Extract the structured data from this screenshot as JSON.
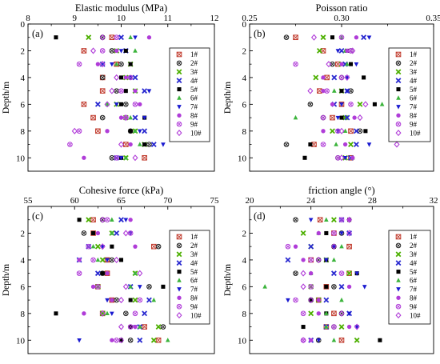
{
  "figure": {
    "legend_entries": [
      "1#",
      "2#",
      "3#",
      "4#",
      "5#",
      "6#",
      "7#",
      "8#",
      "9#",
      "10#"
    ],
    "series_style": [
      {
        "name": "1#",
        "marker": "square-x",
        "color": "#c0392b"
      },
      {
        "name": "2#",
        "marker": "circle-x",
        "color": "#222222"
      },
      {
        "name": "3#",
        "marker": "x",
        "color": "#4caf00"
      },
      {
        "name": "4#",
        "marker": "x",
        "color": "#2a2ad0"
      },
      {
        "name": "5#",
        "marker": "square",
        "color": "#000000"
      },
      {
        "name": "6#",
        "marker": "triangle-up",
        "color": "#3cb43c"
      },
      {
        "name": "7#",
        "marker": "triangle-down",
        "color": "#1a1ad0"
      },
      {
        "name": "8#",
        "marker": "circle",
        "color": "#b03cd8"
      },
      {
        "name": "9#",
        "marker": "circle-x",
        "color": "#b03cd8"
      },
      {
        "name": "10#",
        "marker": "diamond",
        "color": "#b03cd8"
      }
    ]
  },
  "chart_data": [
    {
      "type": "scatter",
      "panel_label": "(a)",
      "title": "Elastic modulus (MPa)",
      "xlabel": "Elastic modulus (MPa)",
      "ylabel": "Depth/m",
      "xlim": [
        8,
        12
      ],
      "ylim": [
        0,
        11
      ],
      "x_ticks": [
        "8",
        "9",
        "10",
        "11",
        "12"
      ],
      "y_ticks": [
        "0",
        "2",
        "4",
        "6",
        "8",
        "10"
      ],
      "legend_position": "right",
      "y": [
        1,
        2,
        3,
        4,
        5,
        6,
        7,
        8,
        9,
        10
      ],
      "series": [
        {
          "name": "1#",
          "x": [
            9.8,
            9.2,
            9.9,
            9.6,
            9.6,
            9.2,
            9.4,
            9.5,
            10.1,
            10.5
          ]
        },
        {
          "name": "2#",
          "x": [
            9.6,
            9.8,
            10.0,
            9.6,
            9.9,
            10.1,
            9.6,
            10.2,
            10.6,
            9.8
          ]
        },
        {
          "name": "3#",
          "x": [
            9.3,
            9.9,
            10.2,
            10.1,
            10.3,
            9.9,
            10.1,
            10.3,
            10.5,
            10.1
          ]
        },
        {
          "name": "4#",
          "x": [
            10.0,
            10.1,
            9.6,
            10.3,
            10.5,
            9.5,
            10.3,
            10.5,
            10.7,
            9.9
          ]
        },
        {
          "name": "5#",
          "x": [
            8.6,
            10.1,
            10.2,
            10.0,
            10.1,
            10.0,
            10.5,
            10.2,
            10.5,
            10.0
          ]
        },
        {
          "name": "6#",
          "x": [
            10.2,
            10.3,
            9.9,
            10.2,
            10.3,
            9.7,
            10.2,
            10.3,
            10.4,
            10.1
          ]
        },
        {
          "name": "7#",
          "x": [
            10.3,
            10.0,
            9.8,
            10.2,
            10.6,
            9.9,
            10.5,
            10.4,
            10.9,
            10.0
          ]
        },
        {
          "name": "8#",
          "x": [
            10.6,
            9.9,
            9.5,
            10.1,
            10.3,
            10.4,
            10.0,
            9.7,
            10.2,
            9.2
          ]
        },
        {
          "name": "9#",
          "x": [
            9.9,
            9.6,
            9.1,
            10.2,
            10.0,
            10.3,
            10.1,
            9.1,
            8.9,
            9.9
          ]
        },
        {
          "name": "10#",
          "x": [
            9.6,
            9.4,
            9.6,
            9.9,
            9.8,
            9.7,
            10.1,
            9.0,
            10.0,
            10.3
          ]
        }
      ]
    },
    {
      "type": "scatter",
      "panel_label": "(b)",
      "title": "Poisson ratio",
      "xlabel": "Poisson ratio",
      "ylabel": "Depth/m",
      "xlim": [
        0.25,
        0.35
      ],
      "ylim": [
        0,
        11
      ],
      "x_ticks": [
        "0.25",
        "0.30",
        "0.35"
      ],
      "y_ticks": [
        "0",
        "2",
        "4",
        "6",
        "8",
        "10"
      ],
      "legend_position": "right",
      "y": [
        1,
        2,
        3,
        4,
        5,
        6,
        7,
        8,
        9,
        10
      ],
      "series": [
        {
          "name": "1#",
          "x": [
            0.275,
            0.29,
            0.298,
            0.292,
            0.288,
            0.3,
            0.295,
            0.305,
            0.285,
            0.305
          ]
        },
        {
          "name": "2#",
          "x": [
            0.27,
            0.305,
            0.295,
            0.3,
            0.305,
            0.283,
            0.29,
            0.31,
            0.27,
            0.298
          ]
        },
        {
          "name": "3#",
          "x": [
            0.29,
            0.288,
            0.3,
            0.286,
            0.3,
            0.31,
            0.302,
            0.295,
            0.305,
            0.302
          ]
        },
        {
          "name": "4#",
          "x": [
            0.312,
            0.3,
            0.302,
            0.296,
            0.303,
            0.296,
            0.303,
            0.308,
            0.308,
            0.305
          ]
        },
        {
          "name": "5#",
          "x": [
            0.295,
            0.303,
            0.305,
            0.312,
            0.3,
            0.318,
            0.3,
            0.313,
            0.283,
            0.28
          ]
        },
        {
          "name": "6#",
          "x": [
            0.3,
            0.302,
            0.303,
            0.29,
            0.296,
            0.322,
            0.275,
            0.302,
            0.297,
            0.306
          ]
        },
        {
          "name": "7#",
          "x": [
            0.315,
            0.298,
            0.308,
            0.303,
            0.303,
            0.3,
            0.298,
            0.298,
            0.315,
            0.302
          ]
        },
        {
          "name": "8#",
          "x": [
            0.308,
            0.303,
            0.3,
            0.29,
            0.29,
            0.295,
            0.307,
            0.29,
            0.302,
            0.306
          ]
        },
        {
          "name": "9#",
          "x": [
            0.3,
            0.305,
            0.275,
            0.3,
            0.292,
            0.305,
            0.29,
            0.298,
            0.29,
            0.298
          ]
        },
        {
          "name": "10#",
          "x": [
            0.285,
            0.306,
            0.293,
            0.303,
            0.283,
            0.313,
            0.31,
            0.3,
            0.33,
            0.3
          ]
        }
      ]
    },
    {
      "type": "scatter",
      "panel_label": "(c)",
      "title": "Cohesive force (kPa)",
      "xlabel": "Cohesive force (kPa)",
      "ylabel": "Depth/m",
      "xlim": [
        55,
        75
      ],
      "ylim": [
        0,
        11
      ],
      "x_ticks": [
        "55",
        "60",
        "65",
        "70",
        "75"
      ],
      "y_ticks": [
        "2",
        "4",
        "6",
        "8",
        "10"
      ],
      "legend_position": "right",
      "y": [
        1,
        2,
        3,
        4,
        5,
        6,
        7,
        8,
        9,
        10
      ],
      "series": [
        {
          "name": "1#",
          "x": [
            62.0,
            62.0,
            68.5,
            63.5,
            63.5,
            62.5,
            64.0,
            63.0,
            67.5,
            69.0
          ]
        },
        {
          "name": "2#",
          "x": [
            63.0,
            61.0,
            69.0,
            64.0,
            63.0,
            68.0,
            64.5,
            65.5,
            69.5,
            66.0
          ]
        },
        {
          "name": "3#",
          "x": [
            61.5,
            64.0,
            62.5,
            63.0,
            66.5,
            62.5,
            66.5,
            63.0,
            69.0,
            68.5
          ]
        },
        {
          "name": "4#",
          "x": [
            65.0,
            64.5,
            61.5,
            60.5,
            62.5,
            66.0,
            68.0,
            67.5,
            67.0,
            67.0
          ]
        },
        {
          "name": "5#",
          "x": [
            60.5,
            62.0,
            64.0,
            65.0,
            63.0,
            69.5,
            66.0,
            58.0,
            66.0,
            65.0
          ]
        },
        {
          "name": "6#",
          "x": [
            64.0,
            64.0,
            62.0,
            62.5,
            66.5,
            66.0,
            68.5,
            63.5,
            67.0,
            70.0
          ]
        },
        {
          "name": "7#",
          "x": [
            65.5,
            66.0,
            63.0,
            63.5,
            71.5,
            67.0,
            63.5,
            64.0,
            66.5,
            60.5
          ]
        },
        {
          "name": "8#",
          "x": [
            66.0,
            62.5,
            66.5,
            60.5,
            63.5,
            62.0,
            64.0,
            61.0,
            66.5,
            64.0
          ]
        },
        {
          "name": "9#",
          "x": [
            63.5,
            66.0,
            61.5,
            62.0,
            60.5,
            62.5,
            67.0,
            66.5,
            66.0,
            64.5
          ]
        },
        {
          "name": "10#",
          "x": [
            63.0,
            65.5,
            63.0,
            64.5,
            67.0,
            65.5,
            65.0,
            63.0,
            65.0,
            65.0
          ]
        }
      ]
    },
    {
      "type": "scatter",
      "panel_label": "(d)",
      "title": "friction angle (°)",
      "xlabel": "friction angle (°)",
      "ylabel": "Depth/m",
      "xlim": [
        20,
        32
      ],
      "ylim": [
        0,
        11
      ],
      "x_ticks": [
        "20",
        "24",
        "28",
        "32"
      ],
      "y_ticks": [
        "2",
        "4",
        "6",
        "8",
        "10"
      ],
      "legend_position": "right",
      "y": [
        1,
        2,
        3,
        4,
        5,
        6,
        7,
        8,
        9,
        10
      ],
      "series": [
        {
          "name": "1#",
          "x": [
            24.6,
            25.5,
            26.5,
            24.0,
            26.5,
            25.0,
            24.5,
            25.5,
            25.0,
            26.0
          ]
        },
        {
          "name": "2#",
          "x": [
            23.0,
            26.0,
            25.5,
            24.5,
            23.0,
            25.5,
            24.0,
            26.0,
            25.5,
            24.5
          ]
        },
        {
          "name": "3#",
          "x": [
            25.5,
            23.5,
            24.0,
            25.0,
            26.5,
            24.0,
            24.5,
            24.0,
            26.0,
            27.0
          ]
        },
        {
          "name": "4#",
          "x": [
            26.0,
            26.5,
            24.0,
            22.5,
            25.5,
            26.0,
            25.0,
            26.5,
            25.0,
            24.0
          ]
        },
        {
          "name": "5#",
          "x": [
            26.5,
            25.0,
            25.5,
            25.0,
            27.0,
            25.0,
            24.0,
            25.0,
            23.5,
            28.5
          ]
        },
        {
          "name": "6#",
          "x": [
            25.0,
            24.5,
            26.0,
            25.5,
            24.0,
            21.0,
            26.0,
            25.0,
            25.0,
            25.5
          ]
        },
        {
          "name": "7#",
          "x": [
            24.0,
            26.0,
            25.5,
            25.0,
            27.0,
            27.5,
            22.5,
            26.5,
            27.0,
            24.5
          ]
        },
        {
          "name": "8#",
          "x": [
            26.5,
            24.5,
            23.0,
            23.5,
            24.0,
            26.5,
            24.5,
            24.5,
            26.5,
            24.0
          ]
        },
        {
          "name": "9#",
          "x": [
            26.0,
            25.5,
            22.5,
            24.0,
            26.0,
            24.0,
            23.0,
            23.5,
            25.5,
            23.5
          ]
        },
        {
          "name": "10#",
          "x": [
            26.5,
            26.5,
            25.5,
            24.5,
            23.5,
            23.5,
            24.0,
            26.0,
            27.0,
            23.5
          ]
        }
      ]
    }
  ]
}
